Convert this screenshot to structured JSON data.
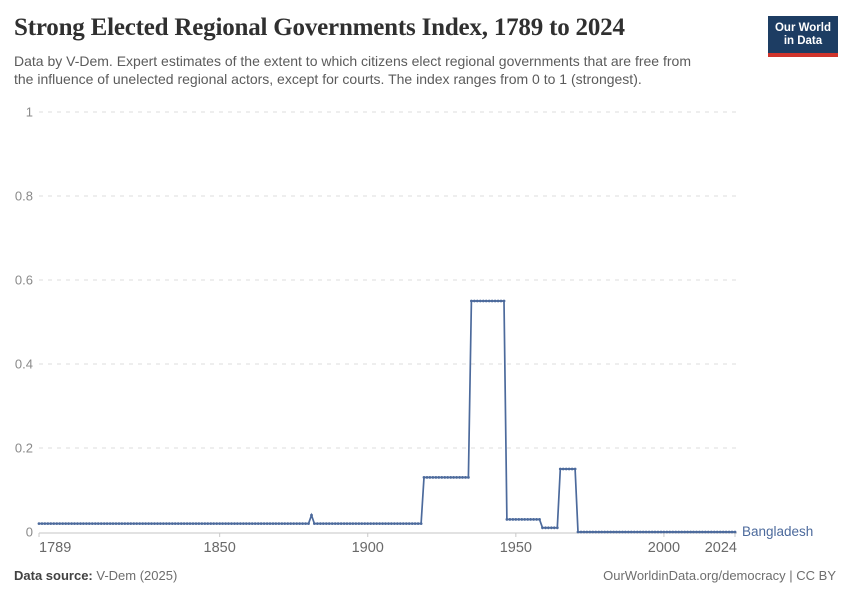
{
  "header": {
    "title": "Strong Elected Regional Governments Index, 1789 to 2024",
    "subtitle_line1": "Data by V-Dem. Expert estimates of the extent to which citizens elect regional governments that are free from",
    "subtitle_line2": "the influence of unelected regional actors, except for courts. The index ranges from 0 to 1 (strongest).",
    "logo_line1": "Our World",
    "logo_line2": "in Data",
    "logo_navy": "#1d3d63",
    "logo_red": "#d0342c"
  },
  "footer": {
    "source_label": "Data source:",
    "source_value": " V-Dem (2025)",
    "license": "OurWorldinData.org/democracy | CC BY"
  },
  "chart_data": {
    "type": "line",
    "title": "Strong Elected Regional Governments Index, 1789 to 2024",
    "series_label": "Bangladesh",
    "series_color": "#4C6A9C",
    "grid": "dashed-horizontal",
    "legend_position": "end-of-line",
    "xlim": [
      1789,
      2024
    ],
    "ylim": [
      0,
      1
    ],
    "x_ticks": [
      {
        "label": "1789",
        "year": 1789,
        "anchor": "start"
      },
      {
        "label": "1850",
        "year": 1850,
        "anchor": "middle"
      },
      {
        "label": "1900",
        "year": 1900,
        "anchor": "middle"
      },
      {
        "label": "1950",
        "year": 1950,
        "anchor": "middle"
      },
      {
        "label": "2000",
        "year": 2000,
        "anchor": "middle"
      },
      {
        "label": "2024",
        "year": 2024,
        "anchor": "end"
      }
    ],
    "y_ticks": [
      {
        "label": "0",
        "value": 0
      },
      {
        "label": "0.2",
        "value": 0.2
      },
      {
        "label": "0.4",
        "value": 0.4
      },
      {
        "label": "0.6",
        "value": 0.6
      },
      {
        "label": "0.8",
        "value": 0.8
      },
      {
        "label": "1",
        "value": 1
      }
    ],
    "segments": [
      {
        "from": 1789,
        "to": 1880,
        "value": 0.02
      },
      {
        "from": 1881,
        "to": 1881,
        "value": 0.04
      },
      {
        "from": 1882,
        "to": 1918,
        "value": 0.02
      },
      {
        "from": 1919,
        "to": 1934,
        "value": 0.13
      },
      {
        "from": 1935,
        "to": 1946,
        "value": 0.55
      },
      {
        "from": 1947,
        "to": 1958,
        "value": 0.03
      },
      {
        "from": 1959,
        "to": 1964,
        "value": 0.01
      },
      {
        "from": 1965,
        "to": 1970,
        "value": 0.15
      },
      {
        "from": 1971,
        "to": 2024,
        "value": 0
      }
    ]
  }
}
